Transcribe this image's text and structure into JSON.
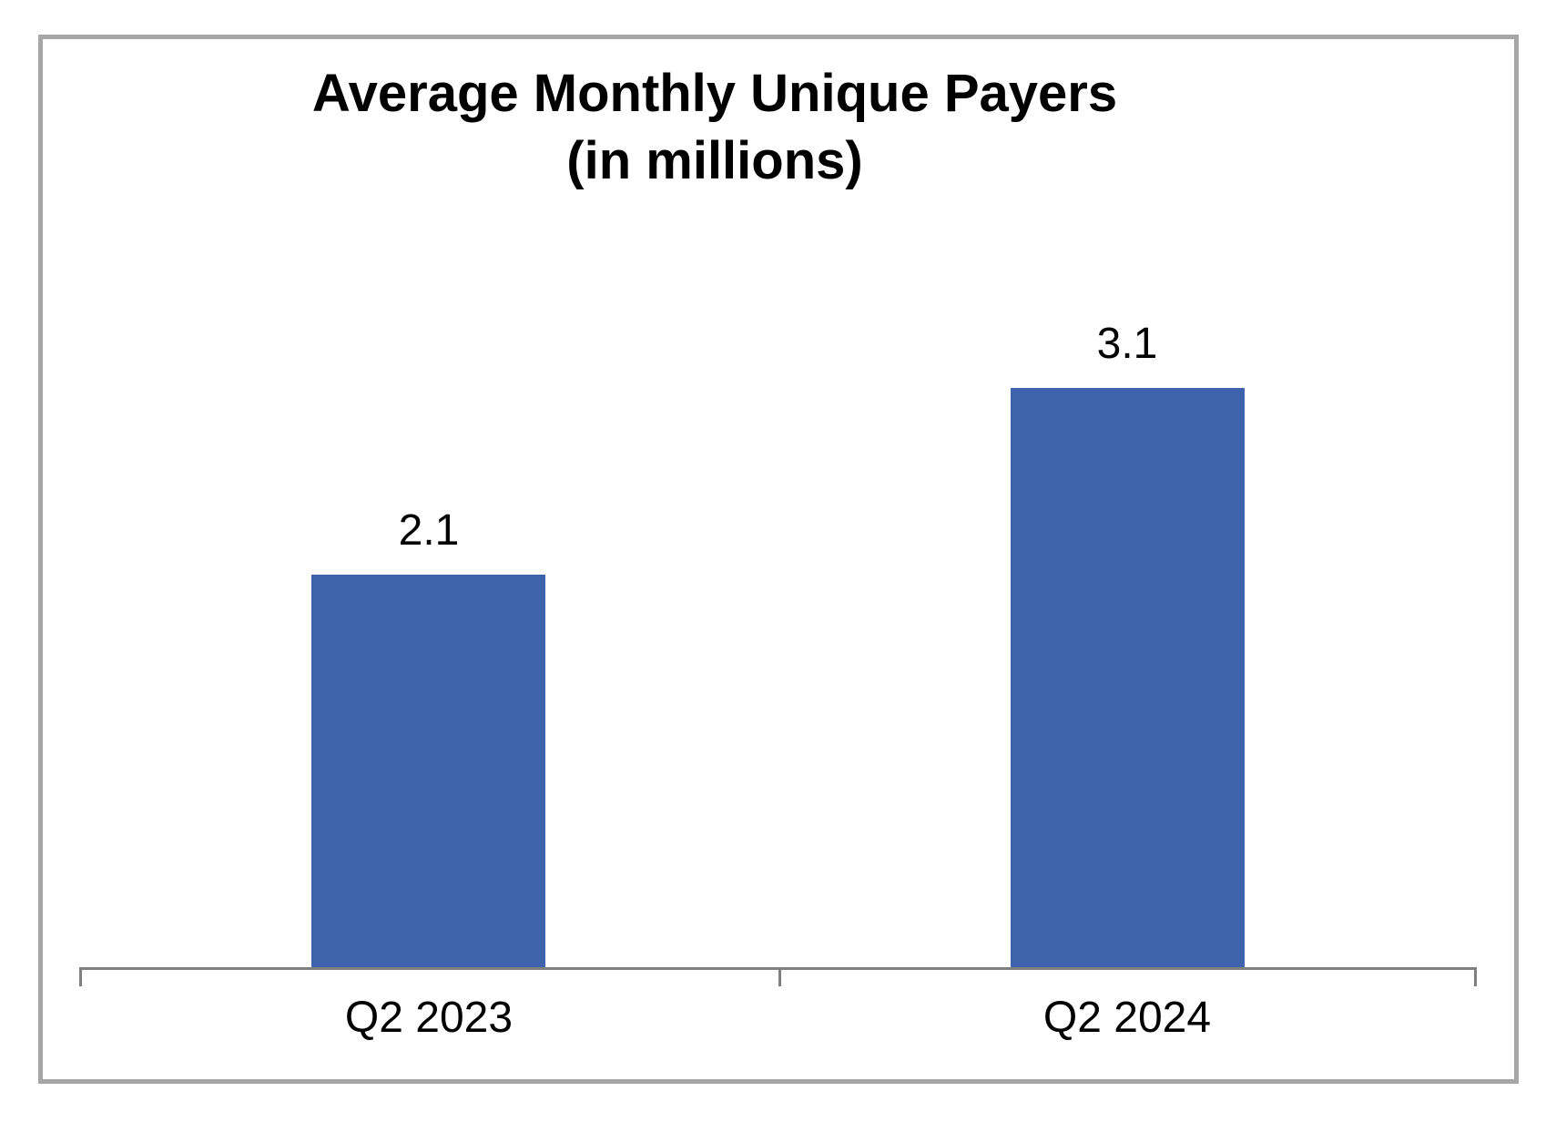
{
  "chart_data": {
    "type": "bar",
    "title": "Average Monthly Unique Payers (in millions)",
    "title_lines": [
      "Average Monthly Unique Payers",
      "(in millions)"
    ],
    "categories": [
      "Q2 2023",
      "Q2 2024"
    ],
    "values": [
      2.1,
      3.1
    ],
    "data_labels": [
      "2.1",
      "3.1"
    ],
    "xlabel": "",
    "ylabel": "",
    "ylim": [
      0,
      3.5
    ],
    "grid": false,
    "legend": false,
    "data_label_position": "above-bar",
    "bar_color": "#3E63AC",
    "axis_color": "#7F7F7F",
    "frame_border_color": "#A6A6A6",
    "text_color": "#000000",
    "background_color": "#FFFFFF"
  }
}
